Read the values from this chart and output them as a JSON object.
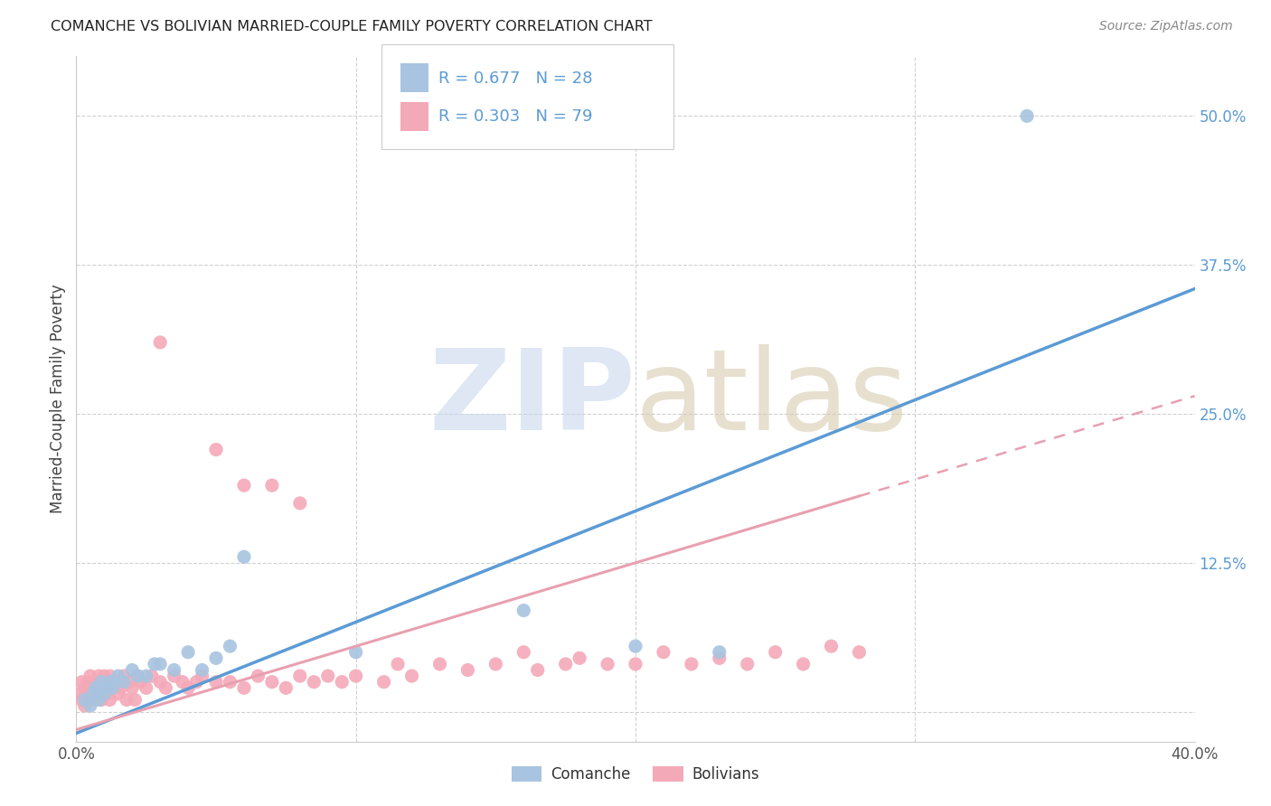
{
  "title": "COMANCHE VS BOLIVIAN MARRIED-COUPLE FAMILY POVERTY CORRELATION CHART",
  "source": "Source: ZipAtlas.com",
  "ylabel": "Married-Couple Family Poverty",
  "xlim": [
    0.0,
    0.4
  ],
  "ylim": [
    -0.025,
    0.55
  ],
  "xticks": [
    0.0,
    0.1,
    0.2,
    0.3,
    0.4
  ],
  "xtick_labels": [
    "0.0%",
    "",
    "",
    "",
    "40.0%"
  ],
  "yticks": [
    0.0,
    0.125,
    0.25,
    0.375,
    0.5
  ],
  "ytick_labels": [
    "",
    "12.5%",
    "25.0%",
    "37.5%",
    "50.0%"
  ],
  "comanche_color": "#a8c4e0",
  "bolivian_color": "#f4a9b8",
  "line_blue": "#5b9bd5",
  "line_pink": "#e8a0b0",
  "comanche_R": 0.677,
  "comanche_N": 28,
  "bolivian_R": 0.303,
  "bolivian_N": 79,
  "comanche_line_x0": 0.0,
  "comanche_line_y0": -0.018,
  "comanche_line_x1": 0.4,
  "comanche_line_y1": 0.355,
  "bolivian_line_x0": 0.0,
  "bolivian_line_y0": -0.015,
  "bolivian_line_x1": 0.4,
  "bolivian_line_y1": 0.265,
  "comanche_scatter_x": [
    0.003,
    0.005,
    0.006,
    0.007,
    0.008,
    0.009,
    0.01,
    0.011,
    0.012,
    0.013,
    0.015,
    0.017,
    0.02,
    0.022,
    0.025,
    0.028,
    0.03,
    0.035,
    0.04,
    0.045,
    0.05,
    0.055,
    0.06,
    0.1,
    0.16,
    0.2,
    0.23,
    0.34
  ],
  "comanche_scatter_y": [
    0.01,
    0.005,
    0.015,
    0.02,
    0.01,
    0.025,
    0.015,
    0.02,
    0.025,
    0.02,
    0.03,
    0.025,
    0.035,
    0.03,
    0.03,
    0.04,
    0.04,
    0.035,
    0.05,
    0.035,
    0.045,
    0.055,
    0.13,
    0.05,
    0.085,
    0.055,
    0.05,
    0.5
  ],
  "bolivian_scatter_x": [
    0.001,
    0.002,
    0.002,
    0.003,
    0.003,
    0.004,
    0.004,
    0.005,
    0.005,
    0.006,
    0.006,
    0.007,
    0.007,
    0.008,
    0.008,
    0.009,
    0.009,
    0.01,
    0.01,
    0.011,
    0.011,
    0.012,
    0.012,
    0.013,
    0.014,
    0.015,
    0.016,
    0.017,
    0.018,
    0.019,
    0.02,
    0.021,
    0.022,
    0.023,
    0.025,
    0.027,
    0.03,
    0.032,
    0.035,
    0.038,
    0.04,
    0.043,
    0.045,
    0.05,
    0.055,
    0.06,
    0.065,
    0.07,
    0.075,
    0.08,
    0.085,
    0.09,
    0.095,
    0.1,
    0.11,
    0.115,
    0.12,
    0.13,
    0.14,
    0.15,
    0.16,
    0.165,
    0.175,
    0.18,
    0.19,
    0.2,
    0.21,
    0.22,
    0.23,
    0.24,
    0.25,
    0.26,
    0.27,
    0.28,
    0.05,
    0.06,
    0.07,
    0.08,
    0.03
  ],
  "bolivian_scatter_y": [
    0.015,
    0.01,
    0.025,
    0.005,
    0.02,
    0.015,
    0.025,
    0.01,
    0.03,
    0.02,
    0.01,
    0.025,
    0.015,
    0.02,
    0.03,
    0.025,
    0.01,
    0.02,
    0.03,
    0.025,
    0.015,
    0.01,
    0.03,
    0.02,
    0.025,
    0.015,
    0.02,
    0.03,
    0.01,
    0.025,
    0.02,
    0.01,
    0.03,
    0.025,
    0.02,
    0.03,
    0.025,
    0.02,
    0.03,
    0.025,
    0.02,
    0.025,
    0.03,
    0.025,
    0.025,
    0.02,
    0.03,
    0.025,
    0.02,
    0.03,
    0.025,
    0.03,
    0.025,
    0.03,
    0.025,
    0.04,
    0.03,
    0.04,
    0.035,
    0.04,
    0.05,
    0.035,
    0.04,
    0.045,
    0.04,
    0.04,
    0.05,
    0.04,
    0.045,
    0.04,
    0.05,
    0.04,
    0.055,
    0.05,
    0.22,
    0.19,
    0.19,
    0.175,
    0.31
  ]
}
